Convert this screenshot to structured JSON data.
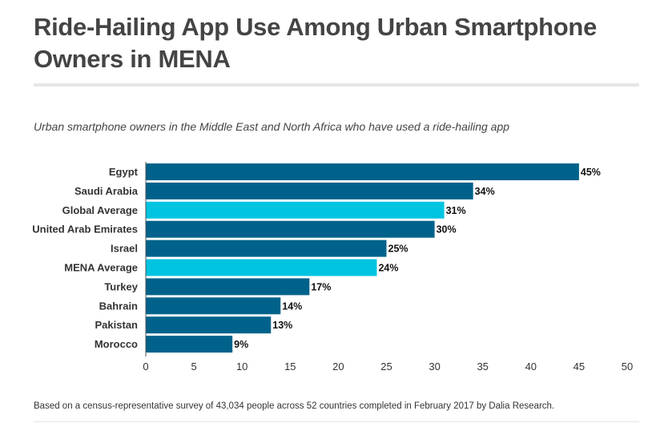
{
  "title": "Ride-Hailing App Use Among Urban Smartphone Owners in MENA",
  "subtitle": "Urban smartphone owners in the Middle East and North Africa who have used a ride-hailing app",
  "footnote": "Based on a census-representative survey of 43,034 people across 52 countries completed in February 2017 by Dalia Research.",
  "colors": {
    "country": "#00628b",
    "average": "#00c4e0",
    "text": "#333333",
    "title": "#444444"
  },
  "chart_data": {
    "type": "bar",
    "orientation": "horizontal",
    "title": "Ride-Hailing App Use Among Urban Smartphone Owners in MENA",
    "subtitle": "Urban smartphone owners in the Middle East and North Africa who have used a ride-hailing app",
    "categories": [
      "Egypt",
      "Saudi Arabia",
      "Global Average",
      "United Arab Emirates",
      "Israel",
      "MENA Average",
      "Turkey",
      "Bahrain",
      "Pakistan",
      "Morocco"
    ],
    "values": [
      45,
      34,
      31,
      30,
      25,
      24,
      17,
      14,
      13,
      9
    ],
    "value_labels": [
      "45%",
      "34%",
      "31%",
      "30%",
      "25%",
      "24%",
      "17%",
      "14%",
      "13%",
      "9%"
    ],
    "highlight": [
      false,
      false,
      true,
      false,
      false,
      true,
      false,
      false,
      false,
      false
    ],
    "xlim": [
      0,
      50
    ],
    "xticks": [
      0,
      5,
      10,
      15,
      20,
      25,
      30,
      35,
      40,
      45,
      50
    ],
    "xlabel": "",
    "ylabel": "",
    "grid": false,
    "legend": "none"
  }
}
